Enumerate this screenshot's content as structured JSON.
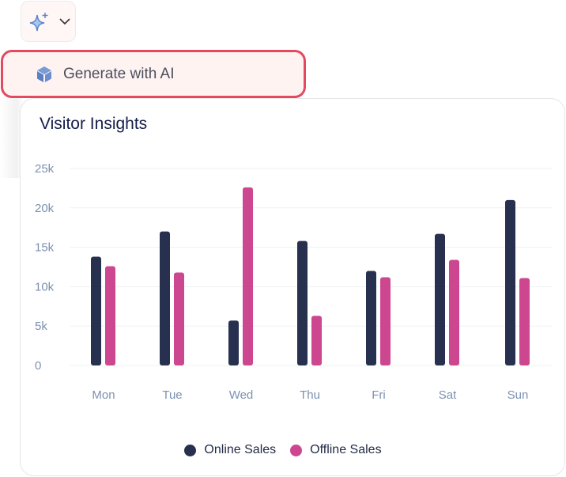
{
  "toolbar": {
    "ai_icon": "sparkle-icon",
    "dropdown_icon": "chevron-down-icon"
  },
  "menu": {
    "item_label": "Generate with AI",
    "item_icon": "cube-icon"
  },
  "card": {
    "title": "Visitor Insights"
  },
  "chart_data": {
    "type": "bar",
    "title": "Visitor Insights",
    "categories": [
      "Mon",
      "Tue",
      "Wed",
      "Thu",
      "Fri",
      "Sat",
      "Sun"
    ],
    "series": [
      {
        "name": "Online Sales",
        "color": "#27304f",
        "values": [
          13800,
          17000,
          5700,
          15800,
          12000,
          16700,
          21000
        ]
      },
      {
        "name": "Offline Sales",
        "color": "#cc4690",
        "values": [
          12600,
          11800,
          22600,
          6300,
          11200,
          13400,
          11100
        ]
      }
    ],
    "yticks": [
      "0",
      "5k",
      "10k",
      "15k",
      "20k",
      "25k"
    ],
    "ylim": [
      0,
      25000
    ],
    "grid": true,
    "legend": "bottom"
  }
}
